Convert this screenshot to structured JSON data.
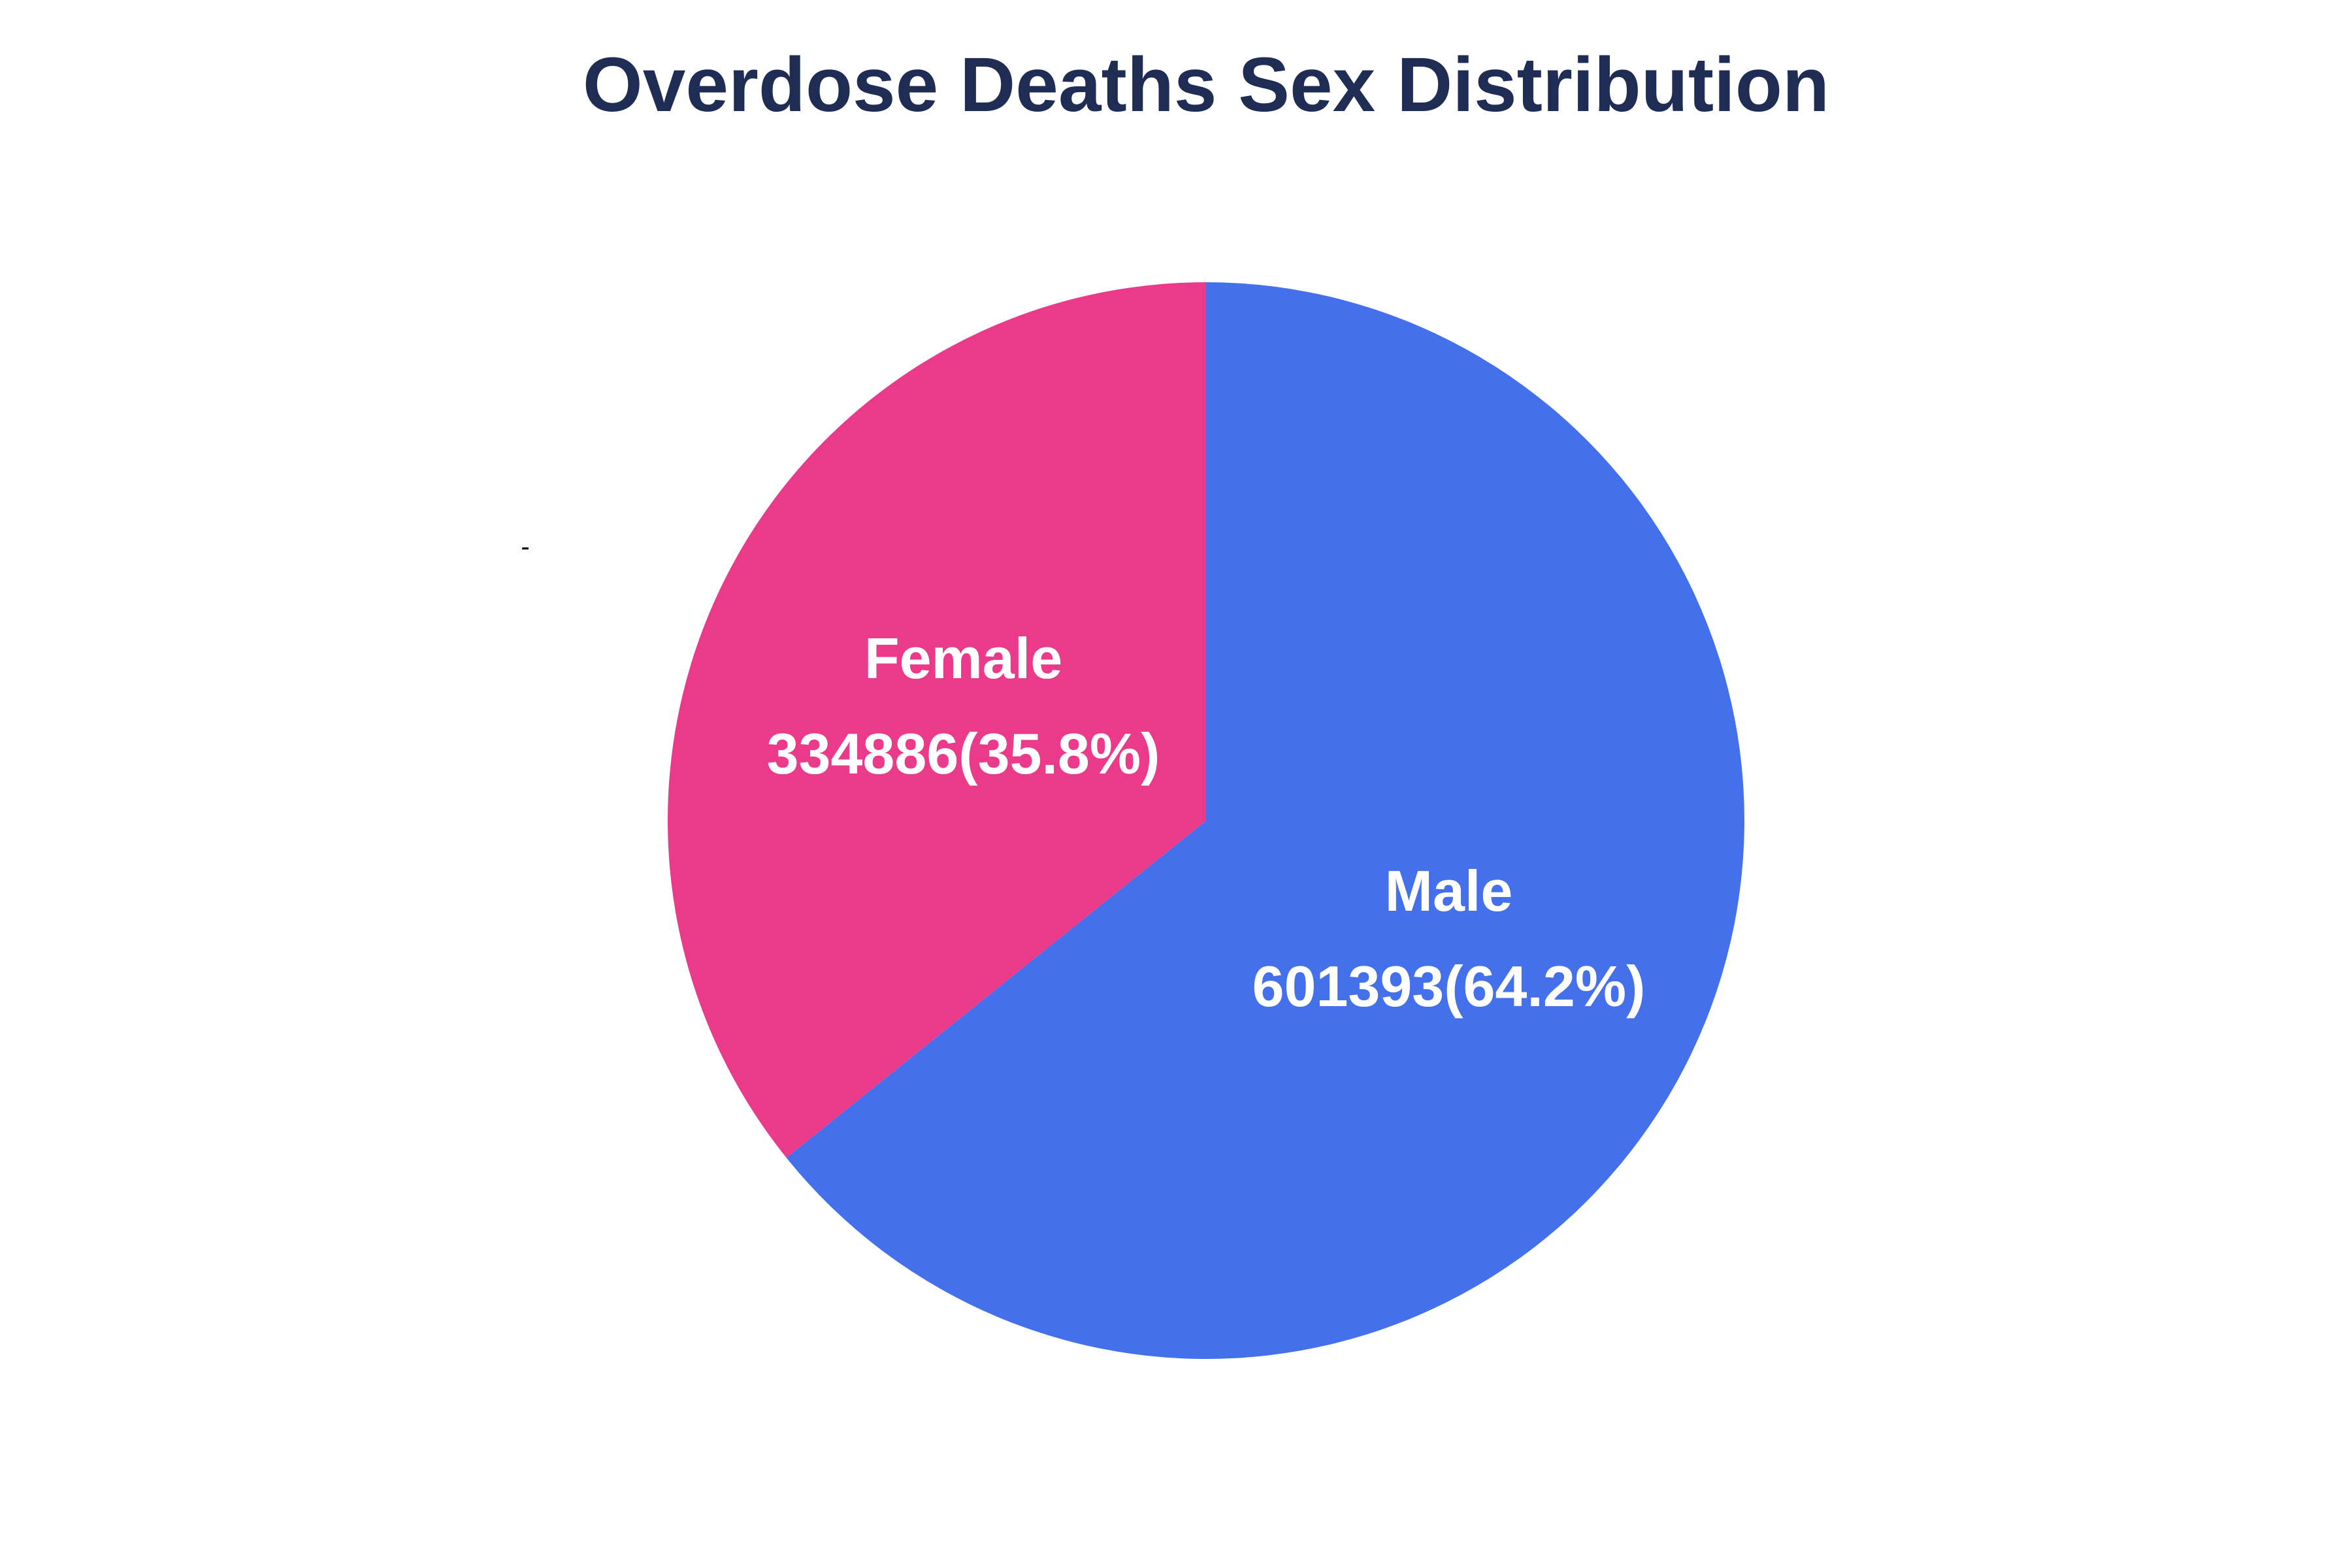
{
  "chart_data": {
    "type": "pie",
    "title": "Overdose Deaths Sex Distribution",
    "title_color": "#1f2d54",
    "stray_mark": "-",
    "start": "top",
    "direction": "clockwise",
    "slices": [
      {
        "label": "Male",
        "value": 601393,
        "percent_label": "601393(64.2%)",
        "color": "#4570ec"
      },
      {
        "label": "Female",
        "value": 334886,
        "percent_label": "334886(35.8%)",
        "color": "#ec3a8a"
      }
    ]
  }
}
